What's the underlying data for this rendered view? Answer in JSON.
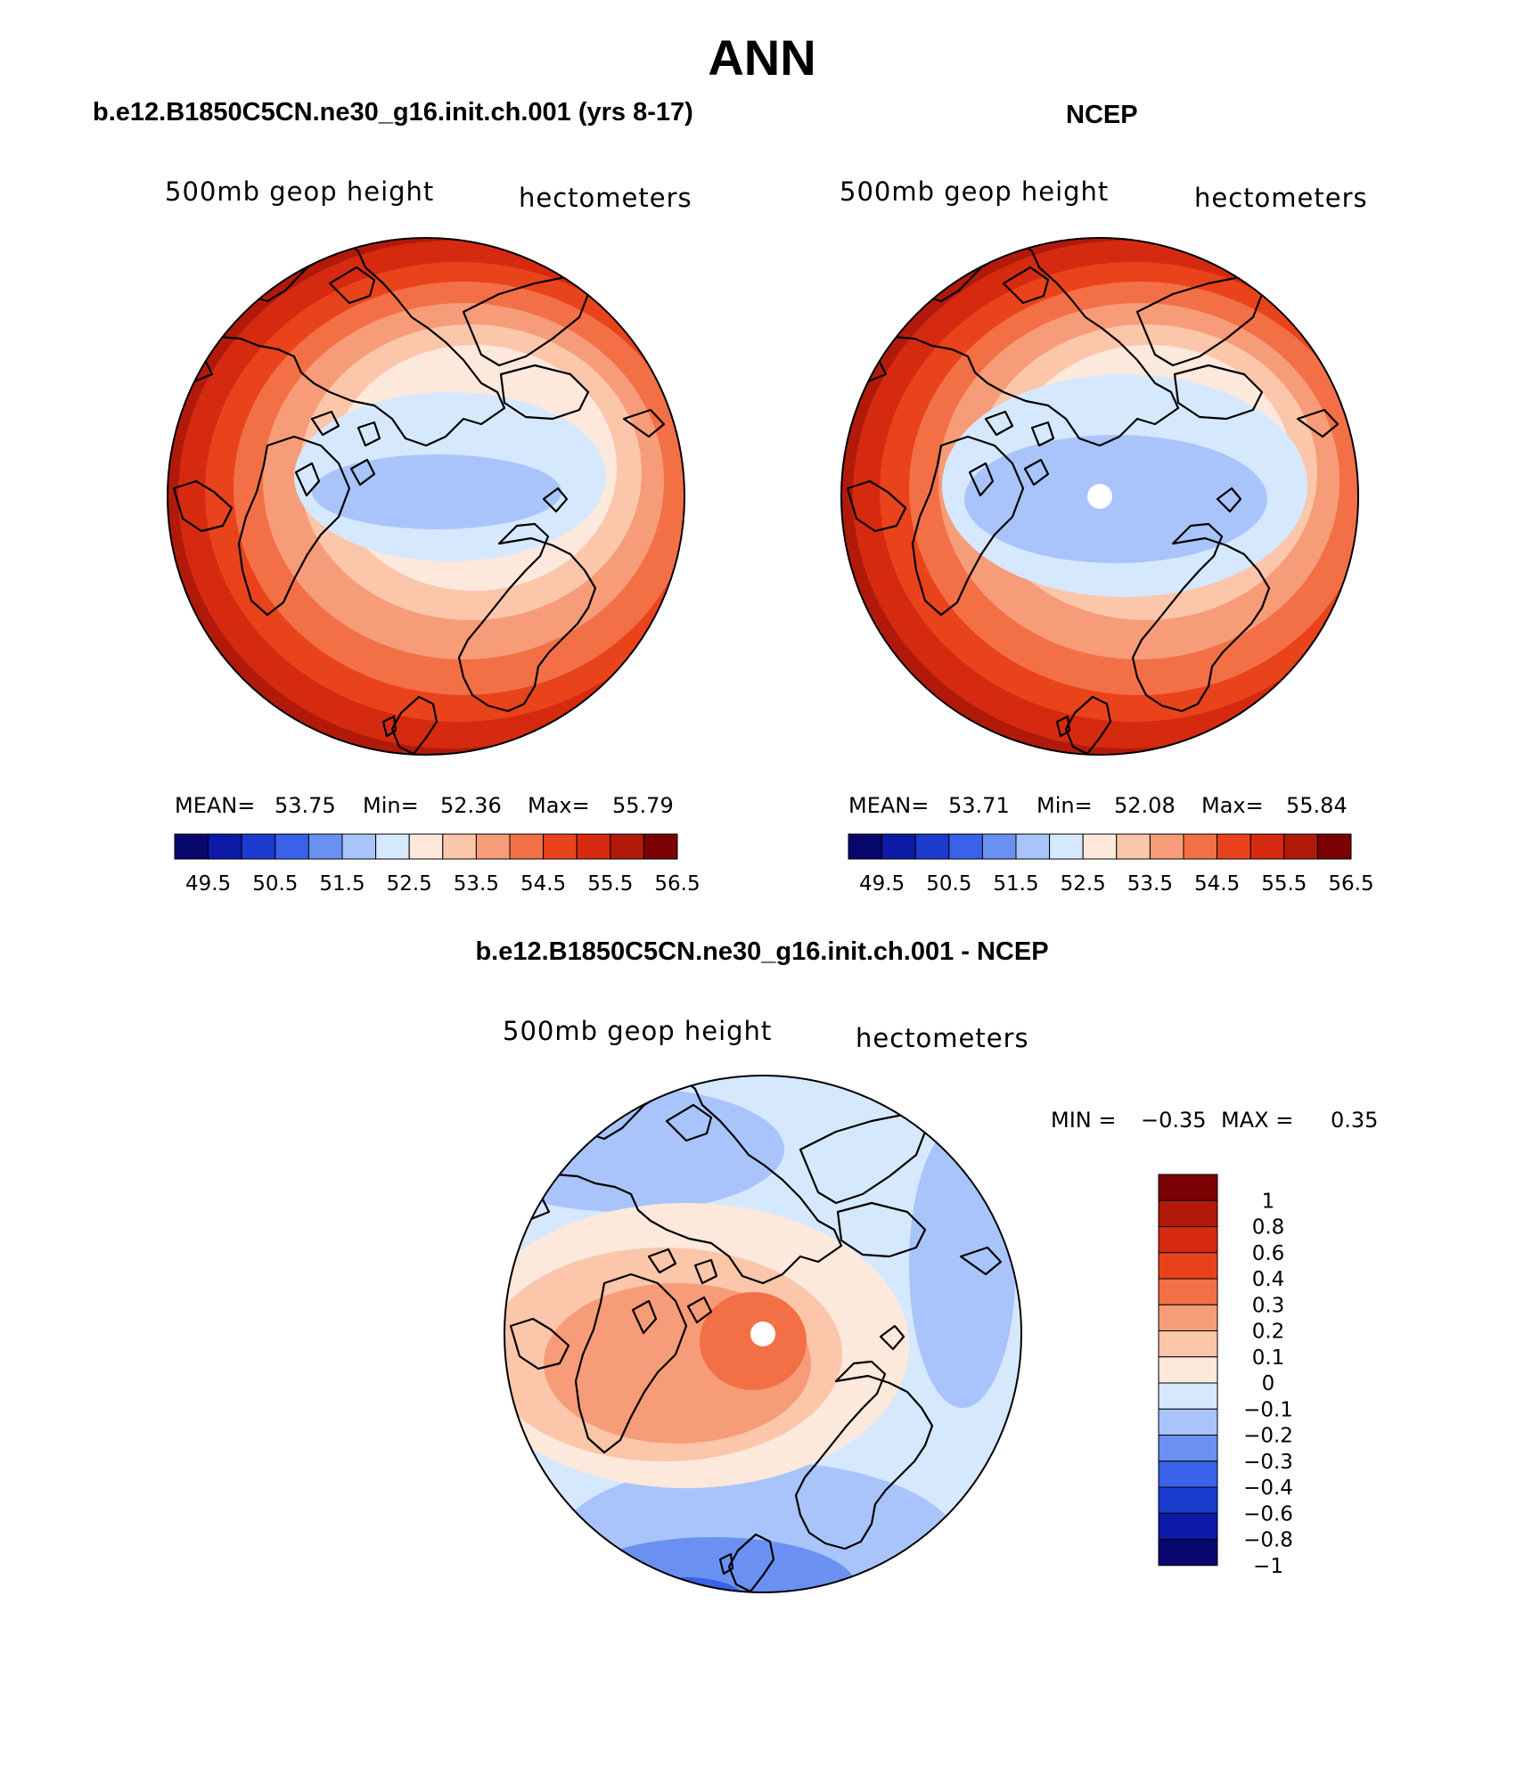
{
  "title": "ANN",
  "colors": {
    "abs_levels": [
      "#08076e",
      "#0d1aa8",
      "#1c3ccf",
      "#3a62e8",
      "#6a90f2",
      "#a9c4fb",
      "#d6e8fd",
      "#fde8dc",
      "#fbc6aa",
      "#f79c78",
      "#f37047",
      "#e9431c",
      "#d62a10",
      "#b11a0a",
      "#7a0202"
    ],
    "diff_levels": [
      "#08076e",
      "#0d1aa8",
      "#1c3ccf",
      "#3a62e8",
      "#6a90f2",
      "#a9c4fb",
      "#d6e8fd",
      "#fde8dc",
      "#fbc6aa",
      "#f79c78",
      "#f37047",
      "#e9431c",
      "#d62a10",
      "#b11a0a",
      "#7a0202"
    ],
    "coast": "#000000",
    "pole_mask": "#ffffff"
  },
  "panels": [
    {
      "id": "model",
      "title": "b.e12.B1850C5CN.ne30_g16.init.ch.001 (yrs 8-17)",
      "variable": "500mb  geop  height",
      "units": "hectometers",
      "stats_labels": {
        "mean": "MEAN=",
        "min": "Min=",
        "max": "Max="
      },
      "stats": {
        "mean": "53.75",
        "min": "52.36",
        "max": "55.79"
      },
      "colorbar_ticks": [
        "49.5",
        "50.5",
        "51.5",
        "52.5",
        "53.5",
        "54.5",
        "55.5",
        "56.5"
      ]
    },
    {
      "id": "obs",
      "title": "NCEP",
      "variable": "500mb  geop  height",
      "units": "hectometers",
      "stats_labels": {
        "mean": "MEAN=",
        "min": "Min=",
        "max": "Max="
      },
      "stats": {
        "mean": "53.71",
        "min": "52.08",
        "max": "55.84"
      },
      "colorbar_ticks": [
        "49.5",
        "50.5",
        "51.5",
        "52.5",
        "53.5",
        "54.5",
        "55.5",
        "56.5"
      ]
    }
  ],
  "difference": {
    "title": "b.e12.B1850C5CN.ne30_g16.init.ch.001 - NCEP",
    "variable": "500mb  geop  height",
    "units": "hectometers",
    "min_label": "MIN =",
    "min": "−0.35",
    "max_label": "MAX =",
    "max": "0.35",
    "colorbar_ticks": [
      "1",
      "0.8",
      "0.6",
      "0.4",
      "0.3",
      "0.2",
      "0.1",
      "0",
      "−0.1",
      "−0.2",
      "−0.3",
      "−0.4",
      "−0.6",
      "−0.8",
      "−1"
    ]
  }
}
